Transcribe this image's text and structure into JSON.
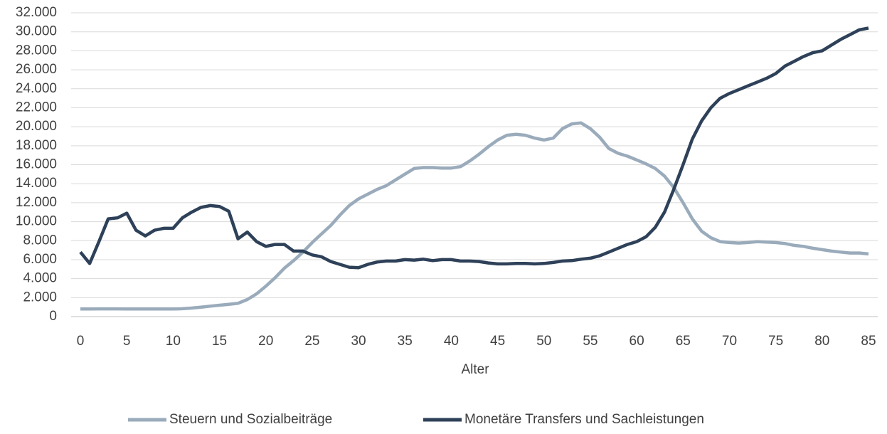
{
  "chart_data": {
    "type": "line",
    "x_label": "Alter",
    "x": [
      0,
      1,
      2,
      3,
      4,
      5,
      6,
      7,
      8,
      9,
      10,
      11,
      12,
      13,
      14,
      15,
      16,
      17,
      18,
      19,
      20,
      21,
      22,
      23,
      24,
      25,
      26,
      27,
      28,
      29,
      30,
      31,
      32,
      33,
      34,
      35,
      36,
      37,
      38,
      39,
      40,
      41,
      42,
      43,
      44,
      45,
      46,
      47,
      48,
      49,
      50,
      51,
      52,
      53,
      54,
      55,
      56,
      57,
      58,
      59,
      60,
      61,
      62,
      63,
      64,
      65,
      66,
      67,
      68,
      69,
      70,
      71,
      72,
      73,
      74,
      75,
      76,
      77,
      78,
      79,
      80,
      81,
      82,
      83,
      84,
      85
    ],
    "series": [
      {
        "name": "Steuern und Sozialbeiträge",
        "color": "#9aabbb",
        "values": [
          800,
          800,
          820,
          820,
          820,
          800,
          800,
          800,
          800,
          800,
          800,
          830,
          900,
          1000,
          1100,
          1200,
          1300,
          1400,
          1800,
          2400,
          3200,
          4100,
          5100,
          5900,
          6800,
          7800,
          8700,
          9600,
          10700,
          11700,
          12400,
          12900,
          13400,
          13800,
          14400,
          15000,
          15600,
          15700,
          15700,
          15650,
          15650,
          15800,
          16400,
          17100,
          17900,
          18600,
          19100,
          19200,
          19100,
          18800,
          18600,
          18800,
          19800,
          20300,
          20400,
          19800,
          18900,
          17700,
          17200,
          16900,
          16500,
          16100,
          15600,
          14800,
          13600,
          12000,
          10300,
          9000,
          8300,
          7900,
          7800,
          7750,
          7800,
          7900,
          7850,
          7800,
          7700,
          7500,
          7400,
          7200,
          7050,
          6900,
          6800,
          6700,
          6700,
          6600
        ]
      },
      {
        "name": "Monetäre Transfers und Sachleistungen",
        "color": "#2e4159",
        "values": [
          6800,
          5600,
          7900,
          10300,
          10400,
          10900,
          9100,
          8500,
          9100,
          9300,
          9300,
          10400,
          11000,
          11500,
          11700,
          11600,
          11100,
          8200,
          8900,
          7900,
          7400,
          7600,
          7600,
          6900,
          6900,
          6500,
          6300,
          5800,
          5500,
          5200,
          5150,
          5500,
          5750,
          5850,
          5850,
          6000,
          5950,
          6050,
          5900,
          6000,
          6000,
          5850,
          5850,
          5800,
          5650,
          5550,
          5550,
          5600,
          5600,
          5550,
          5600,
          5700,
          5850,
          5900,
          6050,
          6150,
          6400,
          6800,
          7200,
          7600,
          7900,
          8400,
          9400,
          11000,
          13400,
          16000,
          18700,
          20600,
          22000,
          23000,
          23500,
          23900,
          24300,
          24700,
          25100,
          25600,
          26400,
          26900,
          27400,
          27800,
          28000,
          28600,
          29200,
          29700,
          30200,
          30400
        ]
      }
    ],
    "xlim": [
      -1,
      86
    ],
    "xticks": [
      0,
      5,
      10,
      15,
      20,
      25,
      30,
      35,
      40,
      45,
      50,
      55,
      60,
      65,
      70,
      75,
      80,
      85
    ],
    "ylim": [
      0,
      32000
    ],
    "yticks": [
      0,
      {
        "value": 2000,
        "label": "2.000"
      },
      {
        "value": 4000,
        "label": "4.000"
      },
      {
        "value": 6000,
        "label": "6.000"
      },
      {
        "value": 8000,
        "label": "8.000"
      },
      {
        "value": 10000,
        "label": "10.000"
      },
      {
        "value": 12000,
        "label": "12.000"
      },
      {
        "value": 14000,
        "label": "14.000"
      },
      {
        "value": 16000,
        "label": "16.000"
      },
      {
        "value": 18000,
        "label": "18.000"
      },
      {
        "value": 20000,
        "label": "20.000"
      },
      {
        "value": 22000,
        "label": "22.000"
      },
      {
        "value": 24000,
        "label": "24.000"
      },
      {
        "value": 26000,
        "label": "26.000"
      },
      {
        "value": 28000,
        "label": "28.000"
      },
      {
        "value": 30000,
        "label": "30.000"
      },
      {
        "value": 32000,
        "label": "32.000"
      }
    ],
    "grid": true,
    "legend": "bottom"
  }
}
